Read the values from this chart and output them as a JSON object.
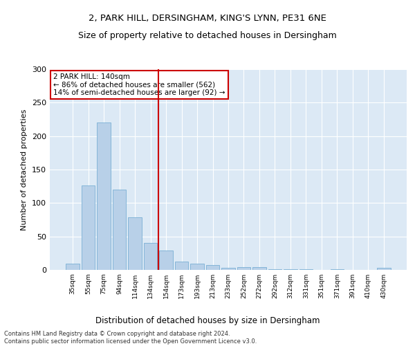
{
  "title1": "2, PARK HILL, DERSINGHAM, KING'S LYNN, PE31 6NE",
  "title2": "Size of property relative to detached houses in Dersingham",
  "xlabel": "Distribution of detached houses by size in Dersingham",
  "ylabel": "Number of detached properties",
  "categories": [
    "35sqm",
    "55sqm",
    "75sqm",
    "94sqm",
    "114sqm",
    "134sqm",
    "154sqm",
    "173sqm",
    "193sqm",
    "213sqm",
    "233sqm",
    "252sqm",
    "272sqm",
    "292sqm",
    "312sqm",
    "331sqm",
    "351sqm",
    "371sqm",
    "391sqm",
    "410sqm",
    "430sqm"
  ],
  "values": [
    9,
    126,
    220,
    120,
    79,
    40,
    29,
    12,
    9,
    7,
    3,
    4,
    4,
    1,
    1,
    1,
    0,
    1,
    0,
    0,
    3
  ],
  "bar_color": "#b8d0e8",
  "bar_edge_color": "#7aafd4",
  "vline_color": "#cc0000",
  "annotation_text": "2 PARK HILL: 140sqm\n← 86% of detached houses are smaller (562)\n14% of semi-detached houses are larger (92) →",
  "annotation_box_color": "#ffffff",
  "annotation_box_edge": "#cc0000",
  "ylim": [
    0,
    300
  ],
  "yticks": [
    0,
    50,
    100,
    150,
    200,
    250,
    300
  ],
  "background_color": "#dce9f5",
  "footer1": "Contains HM Land Registry data © Crown copyright and database right 2024.",
  "footer2": "Contains public sector information licensed under the Open Government Licence v3.0."
}
